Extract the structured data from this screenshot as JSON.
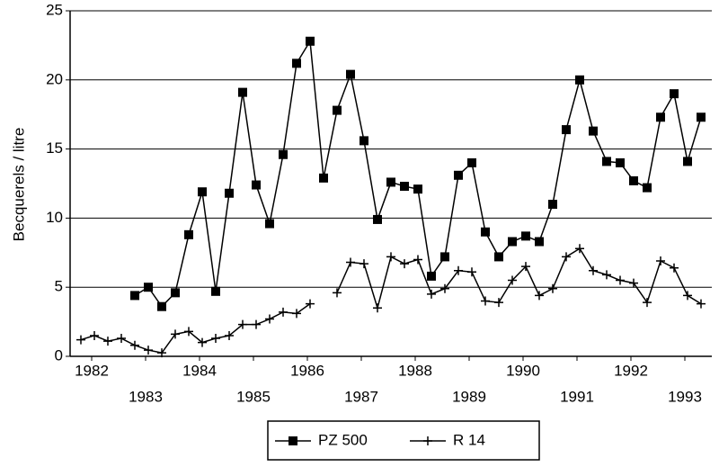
{
  "chart_data": {
    "type": "line",
    "y_label": "Becquerels / litre",
    "x": [
      1981.8,
      1982.05,
      1982.3,
      1982.55,
      1982.8,
      1983.05,
      1983.3,
      1983.55,
      1983.8,
      1984.05,
      1984.3,
      1984.55,
      1984.8,
      1985.05,
      1985.3,
      1985.55,
      1985.8,
      1986.05,
      1986.3,
      1986.55,
      1986.8,
      1987.05,
      1987.3,
      1987.55,
      1987.8,
      1988.05,
      1988.3,
      1988.55,
      1988.8,
      1989.05,
      1989.3,
      1989.55,
      1989.8,
      1990.05,
      1990.3,
      1990.55,
      1990.8,
      1991.05,
      1991.3,
      1991.55,
      1991.8,
      1992.05,
      1992.3,
      1992.55,
      1992.8,
      1993.05,
      1993.3
    ],
    "series": [
      {
        "name": "PZ 500",
        "color": "#000000",
        "marker": "square",
        "values": [
          null,
          null,
          null,
          null,
          4.4,
          5.0,
          3.6,
          4.6,
          8.8,
          11.9,
          4.7,
          11.8,
          19.1,
          12.4,
          9.6,
          14.6,
          21.2,
          22.8,
          12.9,
          17.8,
          20.4,
          15.6,
          9.9,
          12.6,
          12.3,
          12.1,
          5.8,
          7.2,
          13.1,
          14.0,
          9.0,
          7.2,
          8.3,
          8.7,
          8.3,
          11.0,
          16.4,
          20.0,
          16.3,
          14.1,
          14.0,
          12.7,
          12.2,
          17.3,
          19.0,
          14.1,
          17.3
        ]
      },
      {
        "name": "R 14",
        "color": "#000000",
        "marker": "plus",
        "values": [
          1.2,
          1.5,
          1.1,
          1.3,
          0.8,
          0.45,
          0.25,
          1.6,
          1.8,
          1.0,
          1.3,
          1.5,
          2.3,
          2.3,
          2.7,
          3.2,
          3.1,
          3.8,
          null,
          4.6,
          6.8,
          6.7,
          3.5,
          7.2,
          6.7,
          7.0,
          4.5,
          4.9,
          6.2,
          6.1,
          4.0,
          3.9,
          5.5,
          6.5,
          4.4,
          4.9,
          7.2,
          7.8,
          6.2,
          5.9,
          5.5,
          5.3,
          3.9,
          6.9,
          6.4,
          4.4,
          3.8
        ]
      }
    ],
    "xlim": [
      1981.6,
      1993.5
    ],
    "xticks": [
      1982,
      1983,
      1984,
      1985,
      1986,
      1987,
      1988,
      1989,
      1990,
      1991,
      1992,
      1993
    ],
    "ylim": [
      0,
      25
    ],
    "yticks": [
      0,
      5,
      10,
      15,
      20,
      25
    ],
    "grid": true,
    "legend": "bottom"
  }
}
